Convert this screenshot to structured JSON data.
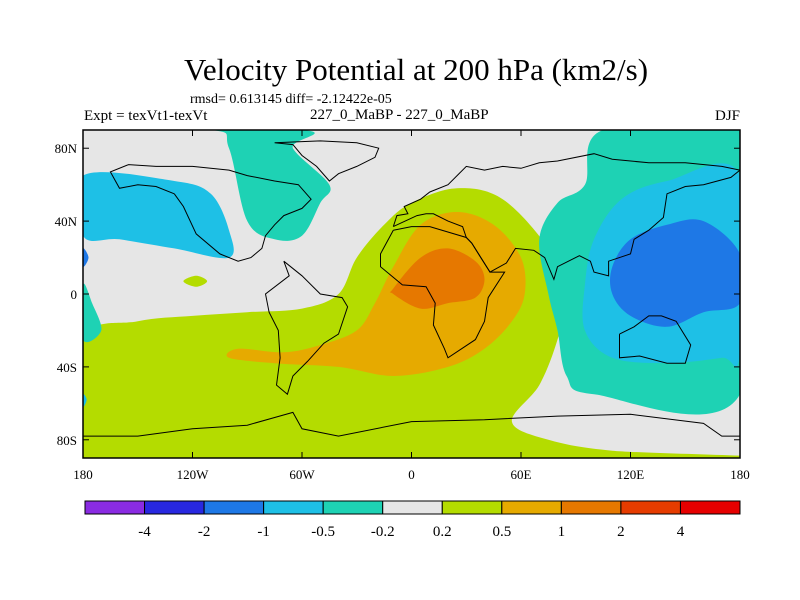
{
  "header": {
    "title": "Velocity Potential at 200 hPa (km2/s)",
    "stats": "rmsd= 0.613145 diff= -2.12422e-05",
    "experiment": "Expt = texVt1-texVt",
    "case": "227_0_MaBP - 227_0_MaBP",
    "season": "DJF"
  },
  "chart_data": {
    "type": "heatmap",
    "title": "Velocity Potential at 200 hPa (km2/s)",
    "xlabel": "",
    "ylabel": "",
    "xlim": [
      -180,
      180
    ],
    "ylim": [
      -90,
      90
    ],
    "x_ticks": [
      -180,
      -120,
      -60,
      0,
      60,
      120,
      180
    ],
    "x_tick_labels": [
      "180",
      "120W",
      "60W",
      "0",
      "60E",
      "120E",
      "180"
    ],
    "y_ticks": [
      80,
      40,
      0,
      -40,
      -80
    ],
    "y_tick_labels": [
      "80N",
      "40N",
      "0",
      "40S",
      "80S"
    ],
    "colorbar": {
      "levels": [
        "-4",
        "-2",
        "-1",
        "-0.5",
        "-0.2",
        "0.2",
        "0.5",
        "1",
        "2",
        "4"
      ],
      "colors": [
        "#8a2be2",
        "#2828e0",
        "#1e78e6",
        "#1ec0e6",
        "#1ed2b4",
        "#e6e6e6",
        "#b4dc00",
        "#e6aa00",
        "#e67800",
        "#e63c00",
        "#e60000"
      ]
    },
    "regions": [
      {
        "level": "0.2 to 0.5",
        "color": "#b4dc00",
        "points": [
          [
            -180,
            -25
          ],
          [
            -150,
            -15
          ],
          [
            -120,
            -12
          ],
          [
            -90,
            -10
          ],
          [
            -60,
            -8
          ],
          [
            -40,
            0
          ],
          [
            -30,
            20
          ],
          [
            -15,
            38
          ],
          [
            0,
            50
          ],
          [
            25,
            58
          ],
          [
            50,
            52
          ],
          [
            75,
            25
          ],
          [
            85,
            0
          ],
          [
            80,
            -25
          ],
          [
            70,
            -50
          ],
          [
            55,
            -70
          ],
          [
            75,
            -80
          ],
          [
            110,
            -86
          ],
          [
            180,
            -90
          ],
          [
            -180,
            -90
          ]
        ]
      },
      {
        "level": "0.2 to 0.5",
        "color": "#b4dc00",
        "points": [
          [
            -125,
            7
          ],
          [
            -118,
            10
          ],
          [
            -112,
            7
          ],
          [
            -118,
            4
          ]
        ]
      },
      {
        "level": "0.5 to 1",
        "color": "#e6aa00",
        "points": [
          [
            -95,
            -30
          ],
          [
            -70,
            -32
          ],
          [
            -50,
            -28
          ],
          [
            -30,
            -20
          ],
          [
            -20,
            -5
          ],
          [
            -10,
            15
          ],
          [
            5,
            38
          ],
          [
            25,
            45
          ],
          [
            45,
            38
          ],
          [
            60,
            20
          ],
          [
            62,
            0
          ],
          [
            55,
            -15
          ],
          [
            40,
            -30
          ],
          [
            20,
            -40
          ],
          [
            -10,
            -45
          ],
          [
            -40,
            -40
          ],
          [
            -75,
            -38
          ],
          [
            -100,
            -35
          ]
        ]
      },
      {
        "level": "1 to 2",
        "color": "#e67800",
        "points": [
          [
            -10,
            3
          ],
          [
            5,
            20
          ],
          [
            20,
            25
          ],
          [
            35,
            18
          ],
          [
            40,
            8
          ],
          [
            35,
            -2
          ],
          [
            20,
            -5
          ],
          [
            5,
            -8
          ],
          [
            -10,
            0
          ]
        ]
      },
      {
        "level": "-0.5 to -0.2",
        "color": "#1ed2b4",
        "points": [
          [
            -180,
            90
          ],
          [
            -110,
            90
          ],
          [
            -100,
            80
          ],
          [
            -90,
            40
          ],
          [
            -75,
            30
          ],
          [
            -60,
            32
          ],
          [
            -50,
            50
          ],
          [
            -45,
            60
          ],
          [
            -65,
            80
          ],
          [
            -60,
            90
          ]
        ]
      },
      {
        "level": "-0.5 to -0.2",
        "color": "#1ed2b4",
        "points": [
          [
            -180,
            5
          ],
          [
            -175,
            -5
          ],
          [
            -170,
            -20
          ],
          [
            -180,
            -25
          ]
        ]
      },
      {
        "level": "-0.5 to -0.2",
        "color": "#1ed2b4",
        "points": [
          [
            180,
            90
          ],
          [
            105,
            90
          ],
          [
            95,
            60
          ],
          [
            80,
            50
          ],
          [
            70,
            30
          ],
          [
            75,
            0
          ],
          [
            80,
            -20
          ],
          [
            85,
            -45
          ],
          [
            100,
            -55
          ],
          [
            180,
            -55
          ]
        ]
      },
      {
        "level": "-1 to -0.5",
        "color": "#1ec0e6",
        "points": [
          [
            -180,
            65
          ],
          [
            -130,
            62
          ],
          [
            -110,
            55
          ],
          [
            -100,
            35
          ],
          [
            -100,
            20
          ],
          [
            -130,
            25
          ],
          [
            -160,
            30
          ],
          [
            -180,
            32
          ]
        ]
      },
      {
        "level": "-1 to -0.5",
        "color": "#1ec0e6",
        "points": [
          [
            180,
            65
          ],
          [
            140,
            62
          ],
          [
            115,
            52
          ],
          [
            100,
            30
          ],
          [
            95,
            5
          ],
          [
            95,
            -20
          ],
          [
            110,
            -35
          ],
          [
            140,
            -38
          ],
          [
            170,
            -35
          ],
          [
            180,
            -32
          ]
        ]
      },
      {
        "level": "-1 to -0.5",
        "color": "#1ec0e6",
        "points": [
          [
            -180,
            -55
          ],
          [
            -178,
            -58
          ],
          [
            -180,
            -62
          ]
        ]
      },
      {
        "level": "-2 to -1",
        "color": "#1e78e6",
        "points": [
          [
            180,
            22
          ],
          [
            160,
            40
          ],
          [
            140,
            38
          ],
          [
            120,
            30
          ],
          [
            110,
            15
          ],
          [
            110,
            0
          ],
          [
            120,
            -12
          ],
          [
            140,
            -18
          ],
          [
            160,
            -10
          ],
          [
            180,
            -5
          ]
        ]
      },
      {
        "level": "-2 to -1",
        "color": "#1e78e6",
        "points": [
          [
            -180,
            25
          ],
          [
            -177,
            20
          ],
          [
            -180,
            15
          ]
        ]
      }
    ],
    "coastlines": [
      [
        [
          -75,
          83
        ],
        [
          -65,
          82
        ],
        [
          -60,
          76
        ],
        [
          -52,
          70
        ],
        [
          -45,
          62
        ],
        [
          -40,
          66
        ],
        [
          -30,
          70
        ],
        [
          -20,
          75
        ],
        [
          -18,
          80
        ],
        [
          -30,
          83
        ],
        [
          -50,
          84
        ],
        [
          -75,
          83
        ]
      ],
      [
        [
          -70,
          18
        ],
        [
          -67,
          10
        ],
        [
          -80,
          0
        ],
        [
          -78,
          -10
        ],
        [
          -73,
          -20
        ],
        [
          -72,
          -35
        ],
        [
          -74,
          -50
        ],
        [
          -68,
          -55
        ],
        [
          -65,
          -45
        ],
        [
          -57,
          -37
        ],
        [
          -48,
          -27
        ],
        [
          -40,
          -22
        ],
        [
          -35,
          -7
        ],
        [
          -38,
          -2
        ],
        [
          -50,
          0
        ],
        [
          -60,
          10
        ],
        [
          -70,
          18
        ]
      ],
      [
        [
          -130,
          55
        ],
        [
          -125,
          48
        ],
        [
          -118,
          33
        ],
        [
          -105,
          22
        ],
        [
          -95,
          18
        ],
        [
          -88,
          20
        ],
        [
          -82,
          25
        ],
        [
          -80,
          32
        ],
        [
          -75,
          38
        ],
        [
          -70,
          43
        ],
        [
          -65,
          45
        ],
        [
          -60,
          47
        ],
        [
          -55,
          52
        ],
        [
          -62,
          60
        ],
        [
          -75,
          62
        ],
        [
          -90,
          65
        ],
        [
          -100,
          68
        ],
        [
          -120,
          70
        ],
        [
          -140,
          70
        ],
        [
          -155,
          71
        ],
        [
          -165,
          67
        ],
        [
          -160,
          58
        ],
        [
          -150,
          60
        ],
        [
          -140,
          59
        ],
        [
          -130,
          55
        ]
      ],
      [
        [
          -10,
          35
        ],
        [
          0,
          37
        ],
        [
          10,
          37
        ],
        [
          30,
          31
        ],
        [
          33,
          28
        ],
        [
          43,
          12
        ],
        [
          51,
          12
        ],
        [
          42,
          -2
        ],
        [
          40,
          -15
        ],
        [
          35,
          -25
        ],
        [
          20,
          -35
        ],
        [
          18,
          -30
        ],
        [
          12,
          -17
        ],
        [
          13,
          -5
        ],
        [
          8,
          4
        ],
        [
          -5,
          5
        ],
        [
          -17,
          15
        ],
        [
          -17,
          22
        ],
        [
          -10,
          35
        ]
      ],
      [
        [
          -10,
          37
        ],
        [
          -8,
          43
        ],
        [
          -2,
          44
        ],
        [
          -4,
          48
        ],
        [
          5,
          52
        ],
        [
          10,
          56
        ],
        [
          20,
          60
        ],
        [
          25,
          65
        ],
        [
          30,
          70
        ],
        [
          40,
          68
        ],
        [
          50,
          70
        ],
        [
          60,
          69
        ],
        [
          70,
          72
        ],
        [
          80,
          73
        ],
        [
          100,
          77
        ],
        [
          110,
          74
        ],
        [
          130,
          72
        ],
        [
          150,
          72
        ],
        [
          170,
          70
        ],
        [
          180,
          68
        ],
        [
          175,
          64
        ],
        [
          160,
          60
        ],
        [
          150,
          59
        ],
        [
          140,
          55
        ],
        [
          138,
          42
        ],
        [
          130,
          35
        ],
        [
          122,
          30
        ],
        [
          120,
          22
        ],
        [
          108,
          18
        ],
        [
          108,
          10
        ],
        [
          100,
          12
        ],
        [
          98,
          18
        ],
        [
          92,
          21
        ],
        [
          80,
          15
        ],
        [
          78,
          8
        ],
        [
          73,
          20
        ],
        [
          67,
          24
        ],
        [
          57,
          25
        ],
        [
          52,
          17
        ],
        [
          43,
          12
        ],
        [
          38,
          20
        ],
        [
          33,
          28
        ],
        [
          30,
          31
        ],
        [
          28,
          37
        ],
        [
          20,
          40
        ],
        [
          12,
          44
        ],
        [
          8,
          44
        ],
        [
          3,
          43
        ],
        [
          -10,
          37
        ]
      ],
      [
        [
          114,
          -22
        ],
        [
          114,
          -35
        ],
        [
          125,
          -34
        ],
        [
          140,
          -38
        ],
        [
          150,
          -38
        ],
        [
          153,
          -28
        ],
        [
          145,
          -15
        ],
        [
          137,
          -12
        ],
        [
          130,
          -12
        ],
        [
          122,
          -18
        ],
        [
          114,
          -22
        ]
      ],
      [
        [
          -180,
          -78
        ],
        [
          -150,
          -78
        ],
        [
          -120,
          -74
        ],
        [
          -90,
          -72
        ],
        [
          -65,
          -65
        ],
        [
          -60,
          -74
        ],
        [
          -40,
          -78
        ],
        [
          0,
          -70
        ],
        [
          40,
          -69
        ],
        [
          80,
          -67
        ],
        [
          120,
          -66
        ],
        [
          160,
          -71
        ],
        [
          170,
          -78
        ],
        [
          180,
          -78
        ]
      ]
    ]
  }
}
